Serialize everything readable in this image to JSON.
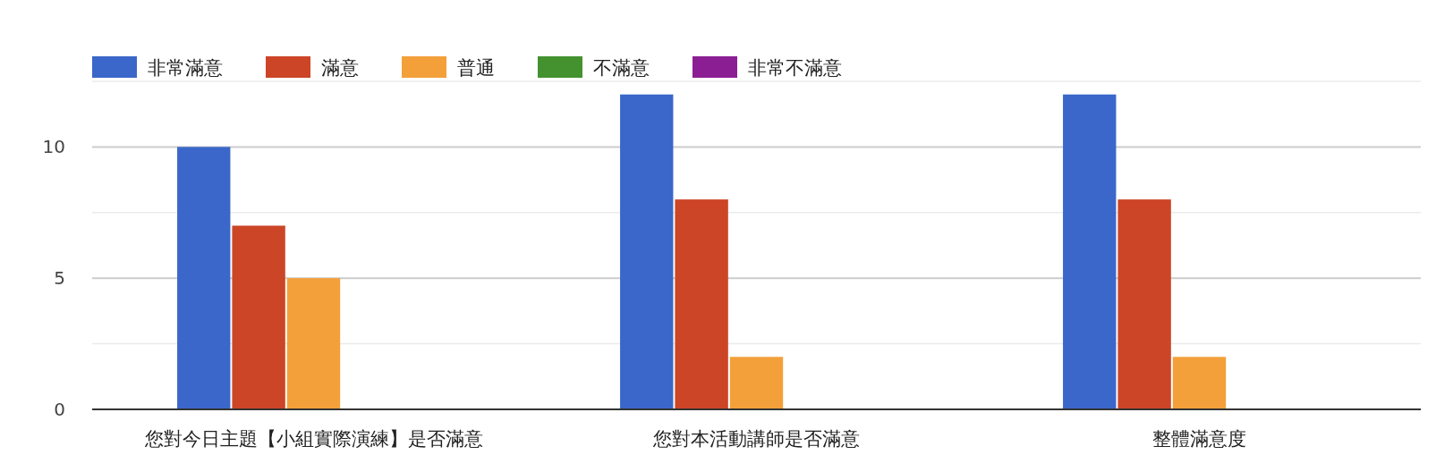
{
  "chart_data": {
    "type": "bar",
    "categories": [
      "您對今日主題【小組實際演練】是否滿意",
      "您對本活動講師是否滿意",
      "整體滿意度"
    ],
    "series": [
      {
        "name": "非常滿意",
        "color": "#3a67c9",
        "values": [
          10,
          12,
          12
        ]
      },
      {
        "name": "滿意",
        "color": "#cc4527",
        "values": [
          7,
          8,
          8
        ]
      },
      {
        "name": "普通",
        "color": "#f3a03a",
        "values": [
          5,
          2,
          2
        ]
      },
      {
        "name": "不滿意",
        "color": "#43922f",
        "values": [
          0,
          0,
          0
        ]
      },
      {
        "name": "非常不滿意",
        "color": "#8c1e94",
        "values": [
          0,
          0,
          0
        ]
      }
    ],
    "ylim": [
      0,
      12.5
    ],
    "yticks": [
      0,
      {
        "value": 2.5,
        "label": null
      },
      5,
      {
        "value": 7.5,
        "label": null
      },
      10,
      {
        "value": 12.5,
        "label": null
      }
    ],
    "grid": "y",
    "legend": "top left"
  }
}
